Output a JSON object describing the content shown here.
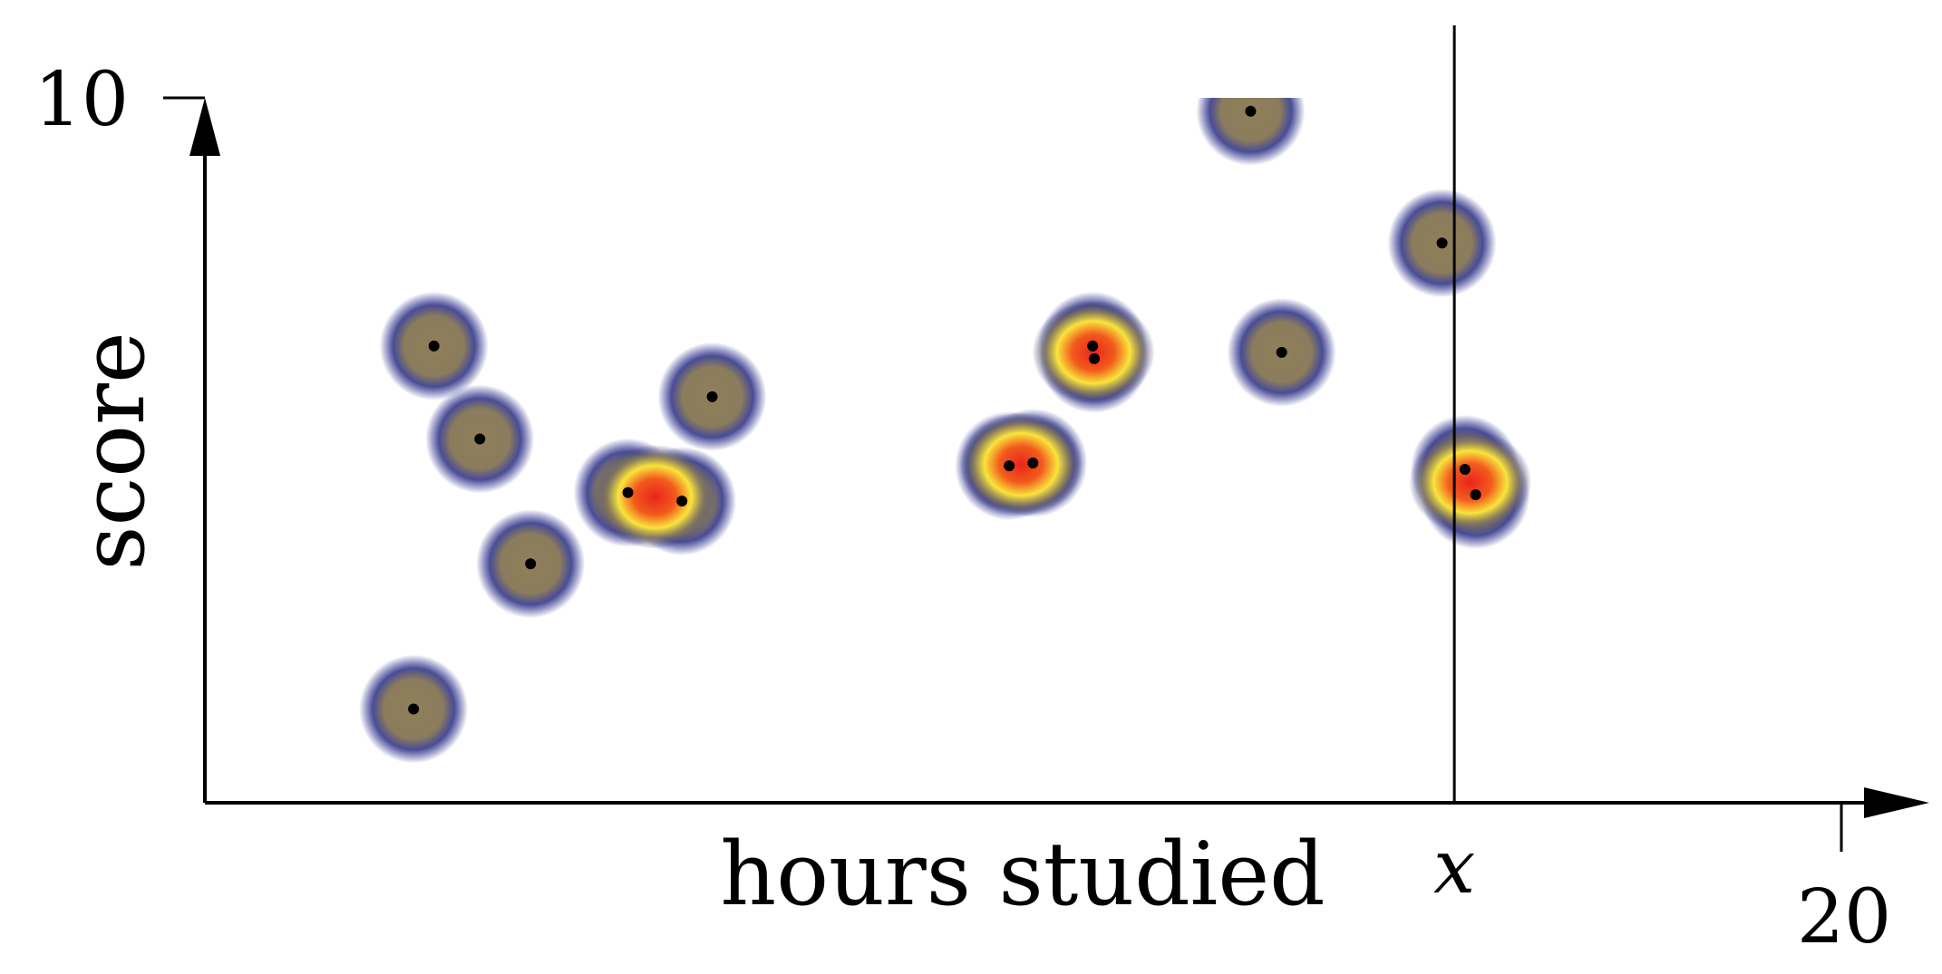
{
  "chart_data": {
    "type": "scatter",
    "title": "",
    "xlabel": "hours studied",
    "ylabel": "score",
    "xlim": [
      0,
      20
    ],
    "ylim": [
      0,
      10
    ],
    "x_tick_labels": [
      "20"
    ],
    "y_tick_labels": [
      "10"
    ],
    "grid": false,
    "density_overlay": {
      "style": "heatmap glow per point",
      "color_stops": [
        "#2b2f8f",
        "#8a7d5a",
        "#f7e23a",
        "#f26a1b",
        "#e8251d"
      ]
    },
    "marker_line": {
      "x": 15.27,
      "label": "x"
    },
    "points": [
      {
        "x": 2.55,
        "y": 1.33
      },
      {
        "x": 2.8,
        "y": 6.48
      },
      {
        "x": 3.36,
        "y": 5.16
      },
      {
        "x": 3.98,
        "y": 3.39
      },
      {
        "x": 5.17,
        "y": 4.4
      },
      {
        "x": 5.83,
        "y": 4.28
      },
      {
        "x": 6.2,
        "y": 5.76
      },
      {
        "x": 9.83,
        "y": 4.78
      },
      {
        "x": 10.12,
        "y": 4.82
      },
      {
        "x": 10.85,
        "y": 6.48
      },
      {
        "x": 10.87,
        "y": 6.3
      },
      {
        "x": 12.78,
        "y": 9.81
      },
      {
        "x": 13.16,
        "y": 6.39
      },
      {
        "x": 15.12,
        "y": 7.94
      },
      {
        "x": 15.4,
        "y": 4.73
      },
      {
        "x": 15.53,
        "y": 4.37
      }
    ]
  }
}
